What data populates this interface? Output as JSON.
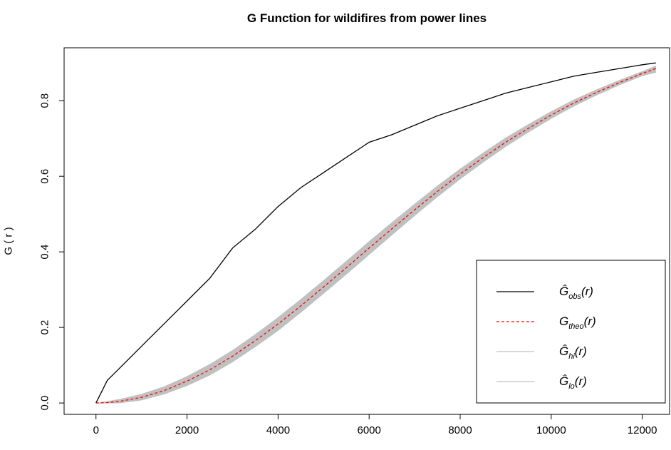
{
  "chart_data": {
    "type": "line",
    "title": "G Function for wildifires from power lines",
    "xlabel": "",
    "ylabel": "G ( r )",
    "xlim": [
      -700,
      12600
    ],
    "ylim": [
      -0.03,
      0.94
    ],
    "x_ticks": [
      0,
      2000,
      4000,
      6000,
      8000,
      10000,
      12000
    ],
    "x_tick_labels": [
      "0",
      "2000",
      "4000",
      "6000",
      "8000",
      "10000",
      "12000"
    ],
    "y_ticks": [
      0.0,
      0.2,
      0.4,
      0.6,
      0.8
    ],
    "y_tick_labels": [
      "0.0",
      "0.2",
      "0.4",
      "0.6",
      "0.8"
    ],
    "x": [
      0,
      250,
      500,
      1000,
      1500,
      2000,
      2500,
      3000,
      3500,
      4000,
      4500,
      5000,
      5500,
      6000,
      6500,
      7000,
      7500,
      8000,
      8500,
      9000,
      9500,
      10000,
      10500,
      11000,
      11500,
      12000,
      12300
    ],
    "series": [
      {
        "name": "Ĝobs(r)",
        "color": "#000000",
        "style": "solid",
        "values": [
          0.0,
          0.06,
          0.09,
          0.15,
          0.21,
          0.27,
          0.33,
          0.41,
          0.46,
          0.52,
          0.57,
          0.61,
          0.65,
          0.69,
          0.71,
          0.735,
          0.76,
          0.78,
          0.8,
          0.82,
          0.835,
          0.85,
          0.865,
          0.875,
          0.885,
          0.895,
          0.9
        ]
      },
      {
        "name": "Gtheo(r)",
        "color": "#ff0000",
        "style": "dashed",
        "values": [
          0.0,
          0.001,
          0.004,
          0.015,
          0.033,
          0.058,
          0.088,
          0.124,
          0.165,
          0.209,
          0.257,
          0.307,
          0.358,
          0.41,
          0.461,
          0.511,
          0.56,
          0.606,
          0.649,
          0.69,
          0.727,
          0.762,
          0.794,
          0.822,
          0.848,
          0.872,
          0.885
        ]
      },
      {
        "name": "Ĝhi(r)",
        "color": "#c0c0c0",
        "style": "band-upper",
        "values": [
          0.0,
          0.004,
          0.009,
          0.023,
          0.043,
          0.07,
          0.102,
          0.139,
          0.181,
          0.226,
          0.274,
          0.324,
          0.375,
          0.427,
          0.477,
          0.526,
          0.574,
          0.619,
          0.661,
          0.701,
          0.737,
          0.771,
          0.802,
          0.829,
          0.854,
          0.877,
          0.892
        ]
      },
      {
        "name": "Ĝlo(r)",
        "color": "#c0c0c0",
        "style": "band-lower",
        "values": [
          0.0,
          0.0,
          0.0,
          0.008,
          0.024,
          0.046,
          0.074,
          0.109,
          0.149,
          0.192,
          0.24,
          0.29,
          0.341,
          0.393,
          0.445,
          0.496,
          0.546,
          0.593,
          0.637,
          0.679,
          0.717,
          0.753,
          0.786,
          0.815,
          0.842,
          0.866,
          0.875
        ]
      }
    ],
    "legend": {
      "position": "bottom-right",
      "entries": [
        {
          "main": "Ĝ",
          "sub": "obs",
          "tail": "(r)"
        },
        {
          "main": "G",
          "sub": "theo",
          "tail": "(r)"
        },
        {
          "main": "Ĝ",
          "sub": "hi",
          "tail": "(r)"
        },
        {
          "main": "Ĝ",
          "sub": "lo",
          "tail": "(r)"
        }
      ]
    },
    "grid": false
  }
}
